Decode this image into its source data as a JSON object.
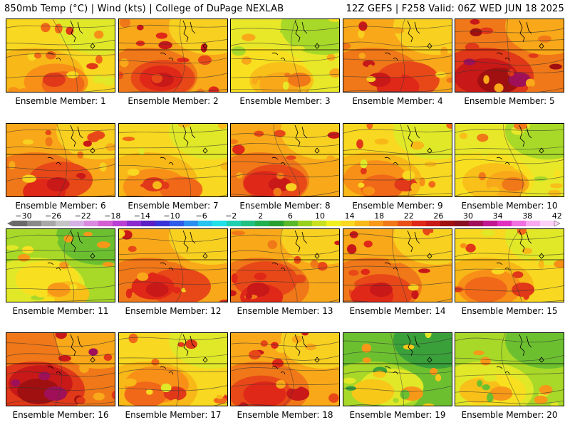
{
  "header": {
    "left": "850mb Temp (°C) | Wind (kts) | College of DuPage NEXLAB",
    "right": "12Z GEFS | F258 Valid: 06Z WED JUN 18 2025"
  },
  "panels": [
    {
      "label": "Ensemble Member: 1",
      "theme": "warm"
    },
    {
      "label": "Ensemble Member: 2",
      "theme": "hot"
    },
    {
      "label": "Ensemble Member: 3",
      "theme": "mild"
    },
    {
      "label": "Ensemble Member: 4",
      "theme": "hot"
    },
    {
      "label": "Ensemble Member: 5",
      "theme": "veryhot"
    },
    {
      "label": "Ensemble Member: 6",
      "theme": "hot"
    },
    {
      "label": "Ensemble Member: 7",
      "theme": "warm"
    },
    {
      "label": "Ensemble Member: 8",
      "theme": "hot"
    },
    {
      "label": "Ensemble Member: 9",
      "theme": "warm"
    },
    {
      "label": "Ensemble Member: 10",
      "theme": "mild"
    },
    {
      "label": "Ensemble Member: 11",
      "theme": "cool"
    },
    {
      "label": "Ensemble Member: 12",
      "theme": "hot"
    },
    {
      "label": "Ensemble Member: 13",
      "theme": "hot"
    },
    {
      "label": "Ensemble Member: 14",
      "theme": "hot"
    },
    {
      "label": "Ensemble Member: 15",
      "theme": "warm"
    },
    {
      "label": "Ensemble Member: 16",
      "theme": "veryhot"
    },
    {
      "label": "Ensemble Member: 17",
      "theme": "warm"
    },
    {
      "label": "Ensemble Member: 18",
      "theme": "hot"
    },
    {
      "label": "Ensemble Member: 19",
      "theme": "cold"
    },
    {
      "label": "Ensemble Member: 20",
      "theme": "cool"
    }
  ],
  "colorbar": {
    "ticks": [
      "−30",
      "−26",
      "−22",
      "−18",
      "−14",
      "−10",
      "−6",
      "−2",
      "2",
      "6",
      "10",
      "14",
      "18",
      "22",
      "26",
      "30",
      "34",
      "38",
      "42"
    ],
    "colors": [
      "#6a6a6a",
      "#8a8a8a",
      "#a8a8a8",
      "#c4c4c4",
      "#d6b0e6",
      "#d98ae0",
      "#d35fd3",
      "#b93fd4",
      "#8a2bd0",
      "#5b1fc4",
      "#3a34d8",
      "#2f5be8",
      "#2a8ff0",
      "#27c3f0",
      "#21e0e8",
      "#1fd0b0",
      "#20c080",
      "#20b050",
      "#27a030",
      "#58b82a",
      "#98d020",
      "#c8e020",
      "#f0f020",
      "#f8d820",
      "#f8b818",
      "#f89818",
      "#f07818",
      "#e85018",
      "#e02818",
      "#c81818",
      "#a01010",
      "#881020",
      "#a01058",
      "#c01890",
      "#e030c0",
      "#f070e0",
      "#f8a8f0",
      "#fcd0f8"
    ]
  },
  "themes": {
    "cold": [
      "#3aa03a",
      "#6cc030",
      "#a8d828",
      "#e0e828",
      "#f8c818",
      "#f89818"
    ],
    "cool": [
      "#6cc030",
      "#a8d828",
      "#e0e828",
      "#f8e020",
      "#f8c018",
      "#f89818"
    ],
    "mild": [
      "#a8d828",
      "#e8e828",
      "#f8e020",
      "#f8c018",
      "#f8a818",
      "#f07818"
    ],
    "warm": [
      "#e0e828",
      "#f8d820",
      "#f8b818",
      "#f89018",
      "#f06818",
      "#e03818"
    ],
    "hot": [
      "#f8d020",
      "#f8a818",
      "#f07818",
      "#e84818",
      "#e02818",
      "#c81818"
    ],
    "veryhot": [
      "#f8a818",
      "#f07818",
      "#e03818",
      "#c81818",
      "#a01010",
      "#a01058"
    ]
  }
}
